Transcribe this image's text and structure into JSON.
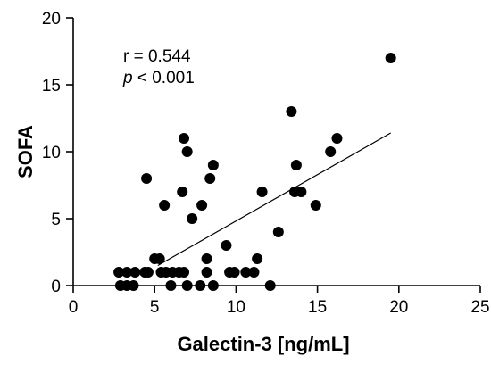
{
  "chart_data": {
    "type": "scatter",
    "xlabel": "Galectin-3 [ng/mL]",
    "ylabel": "SOFA",
    "xlim": [
      0,
      25
    ],
    "ylim": [
      0,
      20
    ],
    "x_ticks": [
      0,
      5,
      10,
      15,
      20,
      25
    ],
    "y_ticks": [
      0,
      5,
      10,
      15,
      20
    ],
    "x_tick_labels": [
      "0",
      "5",
      "10",
      "15",
      "20",
      "25"
    ],
    "y_tick_labels": [
      "0",
      "5",
      "10",
      "15",
      "20"
    ],
    "grid": false,
    "annotations": {
      "r_text": "r = 0.544",
      "p_symbol": "p",
      "p_rest": " < 0.001"
    },
    "series": [
      {
        "points": [
          [
            2.8,
            1
          ],
          [
            3.3,
            1
          ],
          [
            3.8,
            1
          ],
          [
            4.4,
            1
          ],
          [
            4.6,
            1
          ],
          [
            2.9,
            0
          ],
          [
            3.3,
            0
          ],
          [
            3.7,
            0
          ],
          [
            4.5,
            8
          ],
          [
            5.0,
            2
          ],
          [
            5.3,
            2
          ],
          [
            5.4,
            1
          ],
          [
            5.6,
            6
          ],
          [
            5.7,
            1
          ],
          [
            6.0,
            0
          ],
          [
            6.1,
            1
          ],
          [
            6.5,
            1
          ],
          [
            6.7,
            7
          ],
          [
            6.8,
            1
          ],
          [
            6.8,
            11
          ],
          [
            7.0,
            10
          ],
          [
            7.0,
            0
          ],
          [
            7.3,
            5
          ],
          [
            7.8,
            0
          ],
          [
            7.9,
            6
          ],
          [
            8.2,
            2
          ],
          [
            8.2,
            1
          ],
          [
            8.4,
            8
          ],
          [
            8.6,
            9
          ],
          [
            8.6,
            0
          ],
          [
            9.4,
            3
          ],
          [
            9.6,
            1
          ],
          [
            9.9,
            1
          ],
          [
            10.6,
            1
          ],
          [
            11.1,
            1
          ],
          [
            11.3,
            2
          ],
          [
            11.6,
            7
          ],
          [
            12.1,
            0
          ],
          [
            12.6,
            4
          ],
          [
            13.4,
            13
          ],
          [
            13.6,
            7
          ],
          [
            13.7,
            9
          ],
          [
            14.0,
            7
          ],
          [
            14.9,
            6
          ],
          [
            15.8,
            10
          ],
          [
            16.2,
            11
          ],
          [
            19.5,
            17
          ]
        ]
      }
    ],
    "fit_line": {
      "x": [
        5.2,
        19.5
      ],
      "y": [
        1.5,
        11.4
      ]
    }
  }
}
